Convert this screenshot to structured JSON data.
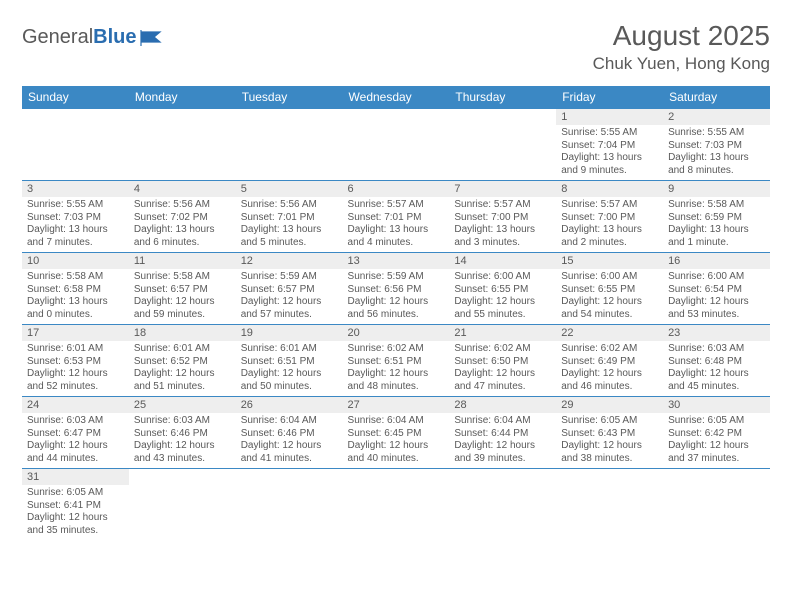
{
  "logo": {
    "text1": "General",
    "text2": "Blue"
  },
  "title": "August 2025",
  "location": "Chuk Yuen, Hong Kong",
  "colors": {
    "header_bg": "#3b88c4",
    "header_fg": "#ffffff",
    "daynum_bg": "#eeeeee",
    "text": "#595959",
    "border": "#3b88c4"
  },
  "weekdays": [
    "Sunday",
    "Monday",
    "Tuesday",
    "Wednesday",
    "Thursday",
    "Friday",
    "Saturday"
  ],
  "weeks": [
    [
      null,
      null,
      null,
      null,
      null,
      {
        "n": "1",
        "sr": "5:55 AM",
        "ss": "7:04 PM",
        "dl": "13 hours and 9 minutes."
      },
      {
        "n": "2",
        "sr": "5:55 AM",
        "ss": "7:03 PM",
        "dl": "13 hours and 8 minutes."
      }
    ],
    [
      {
        "n": "3",
        "sr": "5:55 AM",
        "ss": "7:03 PM",
        "dl": "13 hours and 7 minutes."
      },
      {
        "n": "4",
        "sr": "5:56 AM",
        "ss": "7:02 PM",
        "dl": "13 hours and 6 minutes."
      },
      {
        "n": "5",
        "sr": "5:56 AM",
        "ss": "7:01 PM",
        "dl": "13 hours and 5 minutes."
      },
      {
        "n": "6",
        "sr": "5:57 AM",
        "ss": "7:01 PM",
        "dl": "13 hours and 4 minutes."
      },
      {
        "n": "7",
        "sr": "5:57 AM",
        "ss": "7:00 PM",
        "dl": "13 hours and 3 minutes."
      },
      {
        "n": "8",
        "sr": "5:57 AM",
        "ss": "7:00 PM",
        "dl": "13 hours and 2 minutes."
      },
      {
        "n": "9",
        "sr": "5:58 AM",
        "ss": "6:59 PM",
        "dl": "13 hours and 1 minute."
      }
    ],
    [
      {
        "n": "10",
        "sr": "5:58 AM",
        "ss": "6:58 PM",
        "dl": "13 hours and 0 minutes."
      },
      {
        "n": "11",
        "sr": "5:58 AM",
        "ss": "6:57 PM",
        "dl": "12 hours and 59 minutes."
      },
      {
        "n": "12",
        "sr": "5:59 AM",
        "ss": "6:57 PM",
        "dl": "12 hours and 57 minutes."
      },
      {
        "n": "13",
        "sr": "5:59 AM",
        "ss": "6:56 PM",
        "dl": "12 hours and 56 minutes."
      },
      {
        "n": "14",
        "sr": "6:00 AM",
        "ss": "6:55 PM",
        "dl": "12 hours and 55 minutes."
      },
      {
        "n": "15",
        "sr": "6:00 AM",
        "ss": "6:55 PM",
        "dl": "12 hours and 54 minutes."
      },
      {
        "n": "16",
        "sr": "6:00 AM",
        "ss": "6:54 PM",
        "dl": "12 hours and 53 minutes."
      }
    ],
    [
      {
        "n": "17",
        "sr": "6:01 AM",
        "ss": "6:53 PM",
        "dl": "12 hours and 52 minutes."
      },
      {
        "n": "18",
        "sr": "6:01 AM",
        "ss": "6:52 PM",
        "dl": "12 hours and 51 minutes."
      },
      {
        "n": "19",
        "sr": "6:01 AM",
        "ss": "6:51 PM",
        "dl": "12 hours and 50 minutes."
      },
      {
        "n": "20",
        "sr": "6:02 AM",
        "ss": "6:51 PM",
        "dl": "12 hours and 48 minutes."
      },
      {
        "n": "21",
        "sr": "6:02 AM",
        "ss": "6:50 PM",
        "dl": "12 hours and 47 minutes."
      },
      {
        "n": "22",
        "sr": "6:02 AM",
        "ss": "6:49 PM",
        "dl": "12 hours and 46 minutes."
      },
      {
        "n": "23",
        "sr": "6:03 AM",
        "ss": "6:48 PM",
        "dl": "12 hours and 45 minutes."
      }
    ],
    [
      {
        "n": "24",
        "sr": "6:03 AM",
        "ss": "6:47 PM",
        "dl": "12 hours and 44 minutes."
      },
      {
        "n": "25",
        "sr": "6:03 AM",
        "ss": "6:46 PM",
        "dl": "12 hours and 43 minutes."
      },
      {
        "n": "26",
        "sr": "6:04 AM",
        "ss": "6:46 PM",
        "dl": "12 hours and 41 minutes."
      },
      {
        "n": "27",
        "sr": "6:04 AM",
        "ss": "6:45 PM",
        "dl": "12 hours and 40 minutes."
      },
      {
        "n": "28",
        "sr": "6:04 AM",
        "ss": "6:44 PM",
        "dl": "12 hours and 39 minutes."
      },
      {
        "n": "29",
        "sr": "6:05 AM",
        "ss": "6:43 PM",
        "dl": "12 hours and 38 minutes."
      },
      {
        "n": "30",
        "sr": "6:05 AM",
        "ss": "6:42 PM",
        "dl": "12 hours and 37 minutes."
      }
    ],
    [
      {
        "n": "31",
        "sr": "6:05 AM",
        "ss": "6:41 PM",
        "dl": "12 hours and 35 minutes."
      },
      null,
      null,
      null,
      null,
      null,
      null
    ]
  ],
  "labels": {
    "sunrise": "Sunrise:",
    "sunset": "Sunset:",
    "daylight": "Daylight:"
  }
}
